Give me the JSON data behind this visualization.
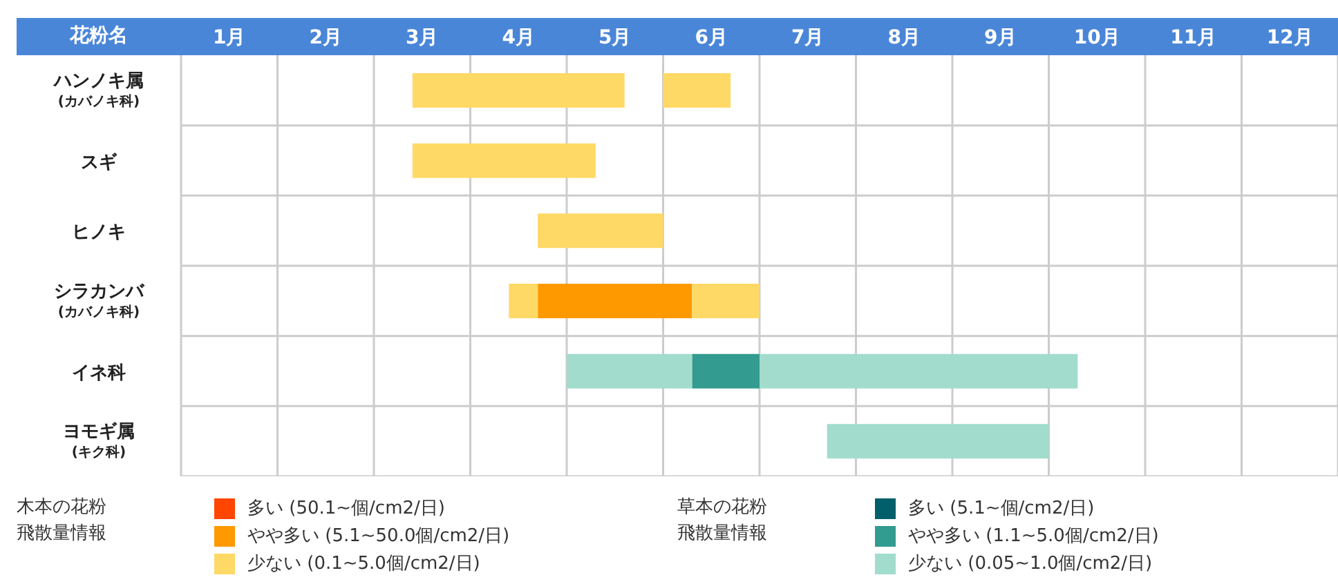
{
  "chart_data": {
    "type": "bar",
    "orientation": "horizontal",
    "ylabel": "花粉名",
    "categories": [
      "ハンノキ属\n(カバノキ科)",
      "スギ",
      "ヒノキ",
      "シラカンバ\n(カバノキ科)",
      "イネ科",
      "ヨモギ属\n(キク科)"
    ],
    "xlim": [
      0,
      12
    ],
    "xticks": [
      {
        "value": 0,
        "label": null
      },
      {
        "value": 0.5,
        "label": "1月"
      },
      {
        "value": 1,
        "label": null
      },
      {
        "value": 1.5,
        "label": "2月"
      },
      {
        "value": 2,
        "label": null
      },
      {
        "value": 2.5,
        "label": "3月"
      },
      {
        "value": 3,
        "label": null
      },
      {
        "value": 3.5,
        "label": "4月"
      },
      {
        "value": 4,
        "label": null
      },
      {
        "value": 4.5,
        "label": "5月"
      },
      {
        "value": 5,
        "label": null
      },
      {
        "value": 5.5,
        "label": "6月"
      },
      {
        "value": 6,
        "label": null
      },
      {
        "value": 6.5,
        "label": "7月"
      },
      {
        "value": 7,
        "label": null
      },
      {
        "value": 7.5,
        "label": "8月"
      },
      {
        "value": 8,
        "label": null
      },
      {
        "value": 8.5,
        "label": "9月"
      },
      {
        "value": 9,
        "label": null
      },
      {
        "value": 9.5,
        "label": "10月"
      },
      {
        "value": 10,
        "label": null
      },
      {
        "value": 10.5,
        "label": "11月"
      },
      {
        "value": 11,
        "label": null
      },
      {
        "value": 11.5,
        "label": "12月"
      },
      {
        "value": 12,
        "label": null
      }
    ],
    "series": [
      {
        "name": "多い (50.1~個/cm2/日)",
        "color": "#ff4500",
        "base": [
          null,
          null,
          null,
          null,
          null,
          null
        ],
        "values": [
          null,
          null,
          null,
          null,
          null,
          null
        ]
      },
      {
        "name": "やや多い (5.1~50.0個/cm2/日)",
        "color": "#ff9900",
        "base": [
          null,
          null,
          null,
          3.7,
          null,
          null
        ],
        "values": [
          null,
          null,
          null,
          1.6,
          null,
          null
        ]
      },
      {
        "name": "少ない (0.1~5.0個/cm2/日)",
        "color": "#ffd966",
        "base": [
          2.4,
          2.4,
          3.7,
          3.4,
          null,
          null
        ],
        "values": [
          2.2,
          1.9,
          1.3,
          0.3,
          null,
          null
        ]
      },
      {
        "color": "#ffd966",
        "base": [
          5.0,
          null,
          null,
          5.3,
          null,
          null
        ],
        "values": [
          0.7,
          null,
          null,
          0.7,
          null,
          null
        ]
      },
      {
        "name": "多い (5.1~個/cm2/日)",
        "color": "#005f6b",
        "base": [
          null,
          null,
          null,
          null,
          null,
          null
        ],
        "values": [
          null,
          null,
          null,
          null,
          null,
          null
        ]
      },
      {
        "name": "やや多い (1.1~5.0個/cm2/日)",
        "color": "#339b8f",
        "base": [
          null,
          null,
          null,
          null,
          5.3,
          null
        ],
        "values": [
          null,
          null,
          null,
          null,
          0.7,
          null
        ]
      },
      {
        "name": "少ない (0.05~1.0個/cm2/日)",
        "color": "#a1dccd",
        "base": [
          null,
          null,
          null,
          null,
          4.0,
          6.7
        ],
        "values": [
          null,
          null,
          null,
          null,
          1.3,
          2.3
        ]
      },
      {
        "color": "#a1dccd",
        "base": [
          null,
          null,
          null,
          null,
          6.0,
          null
        ],
        "values": [
          null,
          null,
          null,
          null,
          3.3,
          null
        ]
      }
    ],
    "annotations": [
      "木本の花粉飛散量情報",
      "草本の花粉飛散量情報"
    ],
    "grid": true,
    "legend": "bottom"
  }
}
